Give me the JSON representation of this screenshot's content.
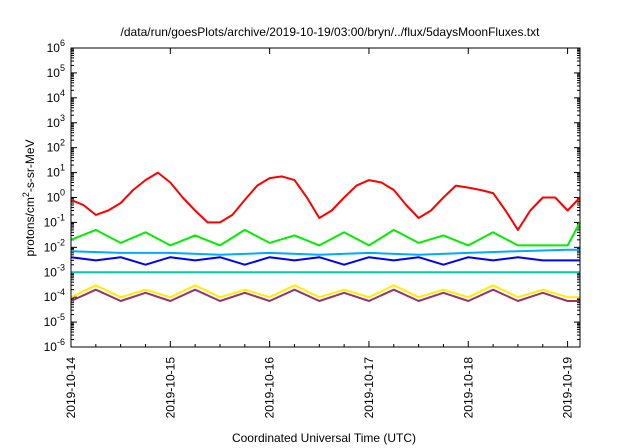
{
  "chart_data": {
    "type": "line",
    "title": "/data/run/goesPlots/archive/2019-10-19/03:00/bryn/../flux/5daysMoonFluxes.txt",
    "xlabel": "Coordinated Universal Time (UTC)",
    "ylabel": {
      "base": "protons/cm",
      "sup": "2",
      "rest": "-s-sr-MeV"
    },
    "y_scale": "log",
    "ylim": [
      1e-06,
      1000000.0
    ],
    "xlim": [
      "2019-10-14T00:00",
      "2019-10-19T03:00"
    ],
    "x_ticks": [
      {
        "value": "2019-10-14T00:00",
        "label": "2019-10-14"
      },
      {
        "value": "2019-10-15T00:00",
        "label": "2019-10-15"
      },
      {
        "value": "2019-10-16T00:00",
        "label": "2019-10-16"
      },
      {
        "value": "2019-10-17T00:00",
        "label": "2019-10-17"
      },
      {
        "value": "2019-10-18T00:00",
        "label": "2019-10-18"
      },
      {
        "value": "2019-10-19T00:00",
        "label": "2019-10-19"
      }
    ],
    "y_ticks": [
      {
        "value": 1e-06,
        "mant": "10",
        "exp": "-6"
      },
      {
        "value": 1e-05,
        "mant": "10",
        "exp": "-5"
      },
      {
        "value": 0.0001,
        "mant": "10",
        "exp": "-4"
      },
      {
        "value": 0.001,
        "mant": "10",
        "exp": "-3"
      },
      {
        "value": 0.01,
        "mant": "10",
        "exp": "-2"
      },
      {
        "value": 0.1,
        "mant": "10",
        "exp": "-1"
      },
      {
        "value": 1,
        "mant": "10",
        "exp": "0"
      },
      {
        "value": 10,
        "mant": "10",
        "exp": "1"
      },
      {
        "value": 100,
        "mant": "10",
        "exp": "2"
      },
      {
        "value": 1000,
        "mant": "10",
        "exp": "3"
      },
      {
        "value": 10000,
        "mant": "10",
        "exp": "4"
      },
      {
        "value": 100000,
        "mant": "10",
        "exp": "5"
      },
      {
        "value": 1000000,
        "mant": "10",
        "exp": "6"
      }
    ],
    "grid": false,
    "series": [
      {
        "color": "#ff0000",
        "x": [
          "2019-10-14T00:00",
          "2019-10-14T03:00",
          "2019-10-14T06:00",
          "2019-10-14T09:00",
          "2019-10-14T12:00",
          "2019-10-14T15:00",
          "2019-10-14T18:00",
          "2019-10-14T21:00",
          "2019-10-15T00:00",
          "2019-10-15T03:00",
          "2019-10-15T06:00",
          "2019-10-15T09:00",
          "2019-10-15T12:00",
          "2019-10-15T15:00",
          "2019-10-15T18:00",
          "2019-10-15T21:00",
          "2019-10-16T00:00",
          "2019-10-16T03:00",
          "2019-10-16T06:00",
          "2019-10-16T09:00",
          "2019-10-16T12:00",
          "2019-10-16T15:00",
          "2019-10-16T18:00",
          "2019-10-16T21:00",
          "2019-10-17T00:00",
          "2019-10-17T03:00",
          "2019-10-17T06:00",
          "2019-10-17T09:00",
          "2019-10-17T12:00",
          "2019-10-17T15:00",
          "2019-10-17T18:00",
          "2019-10-17T21:00",
          "2019-10-18T00:00",
          "2019-10-18T03:00",
          "2019-10-18T06:00",
          "2019-10-18T09:00",
          "2019-10-18T12:00",
          "2019-10-18T15:00",
          "2019-10-18T18:00",
          "2019-10-18T21:00",
          "2019-10-19T00:00",
          "2019-10-19T03:00"
        ],
        "y": [
          0.8,
          0.5,
          0.2,
          0.3,
          0.6,
          2,
          5,
          10,
          4,
          1,
          0.3,
          0.1,
          0.1,
          0.2,
          0.8,
          3,
          6,
          7,
          5,
          1,
          0.15,
          0.3,
          1,
          3,
          5,
          4,
          2,
          0.5,
          0.15,
          0.3,
          1,
          3,
          2.5,
          2,
          1.5,
          0.3,
          0.05,
          0.3,
          1,
          1,
          0.3,
          1
        ]
      },
      {
        "color": "#00ee00",
        "x": [
          "2019-10-14T00:00",
          "2019-10-14T06:00",
          "2019-10-14T12:00",
          "2019-10-14T18:00",
          "2019-10-15T00:00",
          "2019-10-15T06:00",
          "2019-10-15T12:00",
          "2019-10-15T18:00",
          "2019-10-16T00:00",
          "2019-10-16T06:00",
          "2019-10-16T12:00",
          "2019-10-16T18:00",
          "2019-10-17T00:00",
          "2019-10-17T06:00",
          "2019-10-17T12:00",
          "2019-10-17T18:00",
          "2019-10-18T00:00",
          "2019-10-18T06:00",
          "2019-10-18T12:00",
          "2019-10-18T18:00",
          "2019-10-19T00:00",
          "2019-10-19T03:00"
        ],
        "y": [
          0.02,
          0.05,
          0.015,
          0.04,
          0.012,
          0.03,
          0.012,
          0.05,
          0.015,
          0.03,
          0.012,
          0.04,
          0.012,
          0.05,
          0.015,
          0.03,
          0.012,
          0.04,
          0.012,
          0.012,
          0.012,
          0.1
        ]
      },
      {
        "color": "#00aaff",
        "x": [
          "2019-10-14T00:00",
          "2019-10-14T12:00",
          "2019-10-15T00:00",
          "2019-10-15T12:00",
          "2019-10-16T00:00",
          "2019-10-16T12:00",
          "2019-10-17T00:00",
          "2019-10-17T12:00",
          "2019-10-18T00:00",
          "2019-10-18T12:00",
          "2019-10-19T00:00",
          "2019-10-19T03:00"
        ],
        "y": [
          0.007,
          0.006,
          0.006,
          0.005,
          0.006,
          0.005,
          0.006,
          0.005,
          0.006,
          0.007,
          0.008,
          0.008
        ]
      },
      {
        "color": "#0000ff",
        "x": [
          "2019-10-14T00:00",
          "2019-10-14T06:00",
          "2019-10-14T12:00",
          "2019-10-14T18:00",
          "2019-10-15T00:00",
          "2019-10-15T06:00",
          "2019-10-15T12:00",
          "2019-10-15T18:00",
          "2019-10-16T00:00",
          "2019-10-16T06:00",
          "2019-10-16T12:00",
          "2019-10-16T18:00",
          "2019-10-17T00:00",
          "2019-10-17T06:00",
          "2019-10-17T12:00",
          "2019-10-17T18:00",
          "2019-10-18T00:00",
          "2019-10-18T06:00",
          "2019-10-18T12:00",
          "2019-10-18T18:00",
          "2019-10-19T00:00",
          "2019-10-19T03:00"
        ],
        "y": [
          0.004,
          0.003,
          0.004,
          0.002,
          0.004,
          0.003,
          0.004,
          0.002,
          0.004,
          0.003,
          0.004,
          0.002,
          0.004,
          0.003,
          0.004,
          0.002,
          0.004,
          0.003,
          0.004,
          0.003,
          0.003,
          0.003
        ]
      },
      {
        "color": "#00ccaa",
        "x": [
          "2019-10-14T00:00",
          "2019-10-14T12:00",
          "2019-10-15T00:00",
          "2019-10-15T12:00",
          "2019-10-16T00:00",
          "2019-10-16T12:00",
          "2019-10-17T00:00",
          "2019-10-17T12:00",
          "2019-10-18T00:00",
          "2019-10-18T12:00",
          "2019-10-19T00:00",
          "2019-10-19T03:00"
        ],
        "y": [
          0.001,
          0.001,
          0.001,
          0.001,
          0.001,
          0.001,
          0.001,
          0.001,
          0.001,
          0.001,
          0.001,
          0.001
        ]
      },
      {
        "color": "#ffee00",
        "x": [
          "2019-10-14T00:00",
          "2019-10-14T06:00",
          "2019-10-14T12:00",
          "2019-10-14T18:00",
          "2019-10-15T00:00",
          "2019-10-15T06:00",
          "2019-10-15T12:00",
          "2019-10-15T18:00",
          "2019-10-16T00:00",
          "2019-10-16T06:00",
          "2019-10-16T12:00",
          "2019-10-16T18:00",
          "2019-10-17T00:00",
          "2019-10-17T06:00",
          "2019-10-17T12:00",
          "2019-10-17T18:00",
          "2019-10-18T00:00",
          "2019-10-18T06:00",
          "2019-10-18T12:00",
          "2019-10-18T18:00",
          "2019-10-19T00:00",
          "2019-10-19T03:00"
        ],
        "y": [
          0.0001,
          0.0003,
          0.0001,
          0.0002,
          0.0001,
          0.0003,
          0.0001,
          0.0002,
          0.0001,
          0.0003,
          0.0001,
          0.0002,
          0.0001,
          0.0003,
          0.0001,
          0.0002,
          0.0001,
          0.0003,
          0.0001,
          0.0002,
          0.0001,
          0.0001
        ]
      },
      {
        "color": "#993366",
        "x": [
          "2019-10-14T00:00",
          "2019-10-14T06:00",
          "2019-10-14T12:00",
          "2019-10-14T18:00",
          "2019-10-15T00:00",
          "2019-10-15T06:00",
          "2019-10-15T12:00",
          "2019-10-15T18:00",
          "2019-10-16T00:00",
          "2019-10-16T06:00",
          "2019-10-16T12:00",
          "2019-10-16T18:00",
          "2019-10-17T00:00",
          "2019-10-17T06:00",
          "2019-10-17T12:00",
          "2019-10-17T18:00",
          "2019-10-18T00:00",
          "2019-10-18T06:00",
          "2019-10-18T12:00",
          "2019-10-18T18:00",
          "2019-10-19T00:00",
          "2019-10-19T03:00"
        ],
        "y": [
          7e-05,
          0.0002,
          7e-05,
          0.00015,
          7e-05,
          0.0002,
          7e-05,
          0.00015,
          7e-05,
          0.0002,
          7e-05,
          0.00015,
          7e-05,
          0.0002,
          7e-05,
          0.00015,
          7e-05,
          0.0002,
          7e-05,
          0.00015,
          7e-05,
          7e-05
        ]
      }
    ]
  }
}
